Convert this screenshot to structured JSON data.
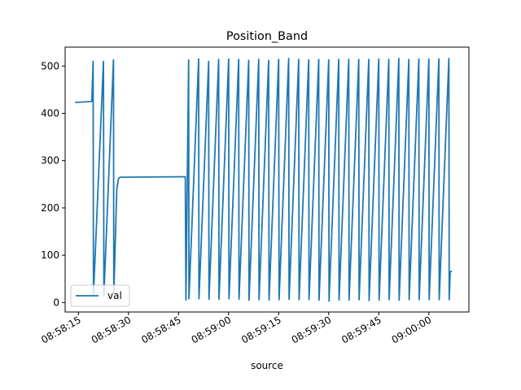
{
  "chart_data": {
    "type": "line",
    "title": "Position_Band",
    "xlabel": "source",
    "ylabel": "",
    "x_ticks": [
      "08:58:15",
      "08:58:30",
      "08:58:45",
      "08:59:00",
      "08:59:15",
      "08:59:30",
      "08:59:45",
      "09:00:00"
    ],
    "y_ticks": [
      0,
      100,
      200,
      300,
      400,
      500
    ],
    "ylim": [
      -20,
      540
    ],
    "xlim": [
      "08:58:11",
      "09:00:12"
    ],
    "grid": false,
    "legend_position": "lower left",
    "series": [
      {
        "name": "val",
        "color": "#1f77b4",
        "points": [
          [
            "08:58:14",
            423
          ],
          [
            "08:58:19",
            425
          ],
          [
            "08:58:19.4",
            510
          ],
          [
            "08:58:19.5",
            15
          ],
          [
            "08:58:22.5",
            510
          ],
          [
            "08:58:22.6",
            15
          ],
          [
            "08:58:25.5",
            513
          ],
          [
            "08:58:25.6",
            20
          ],
          [
            "08:58:26.5",
            240
          ],
          [
            "08:58:27",
            262
          ],
          [
            "08:58:27.5",
            265
          ],
          [
            "08:58:47",
            266
          ],
          [
            "08:58:47.2",
            5
          ],
          [
            "08:58:48",
            513
          ],
          [
            "08:58:48.1",
            8
          ],
          [
            "08:58:51",
            515
          ],
          [
            "08:58:51.1",
            8
          ],
          [
            "08:58:54",
            510
          ],
          [
            "08:58:54.1",
            7
          ],
          [
            "08:58:57",
            514
          ],
          [
            "08:58:57.1",
            7
          ],
          [
            "08:59:00",
            515
          ],
          [
            "08:59:00.1",
            8
          ],
          [
            "08:59:03",
            514
          ],
          [
            "08:59:03.1",
            7
          ],
          [
            "08:59:06",
            512
          ],
          [
            "08:59:06.1",
            5
          ],
          [
            "08:59:09",
            514
          ],
          [
            "08:59:09.1",
            6
          ],
          [
            "08:59:12",
            512
          ],
          [
            "08:59:12.1",
            5
          ],
          [
            "08:59:15",
            514
          ],
          [
            "08:59:15.1",
            6
          ],
          [
            "08:59:18",
            516
          ],
          [
            "08:59:18.1",
            7
          ],
          [
            "08:59:21",
            514
          ],
          [
            "08:59:21.1",
            6
          ],
          [
            "08:59:24",
            513
          ],
          [
            "08:59:24.1",
            6
          ],
          [
            "08:59:27",
            514
          ],
          [
            "08:59:27.1",
            5
          ],
          [
            "08:59:30",
            513
          ],
          [
            "08:59:30.1",
            3
          ],
          [
            "08:59:33",
            514
          ],
          [
            "08:59:33.1",
            5
          ],
          [
            "08:59:36",
            514
          ],
          [
            "08:59:36.1",
            5
          ],
          [
            "08:59:39",
            514
          ],
          [
            "08:59:39.1",
            6
          ],
          [
            "08:59:42",
            514
          ],
          [
            "08:59:42.1",
            4
          ],
          [
            "08:59:45",
            515
          ],
          [
            "08:59:45.1",
            5
          ],
          [
            "08:59:48",
            514
          ],
          [
            "08:59:48.1",
            6
          ],
          [
            "08:59:51",
            516
          ],
          [
            "08:59:51.1",
            5
          ],
          [
            "08:59:54",
            514
          ],
          [
            "08:59:54.1",
            6
          ],
          [
            "08:59:57",
            515
          ],
          [
            "08:59:57.1",
            6
          ],
          [
            "09:00:00",
            515
          ],
          [
            "09:00:00.1",
            6
          ],
          [
            "09:00:03",
            515
          ],
          [
            "09:00:03.1",
            6
          ],
          [
            "09:00:06",
            516
          ],
          [
            "09:00:06.1",
            6
          ],
          [
            "09:00:06.4",
            65
          ],
          [
            "09:00:06.9",
            66
          ]
        ]
      }
    ]
  }
}
